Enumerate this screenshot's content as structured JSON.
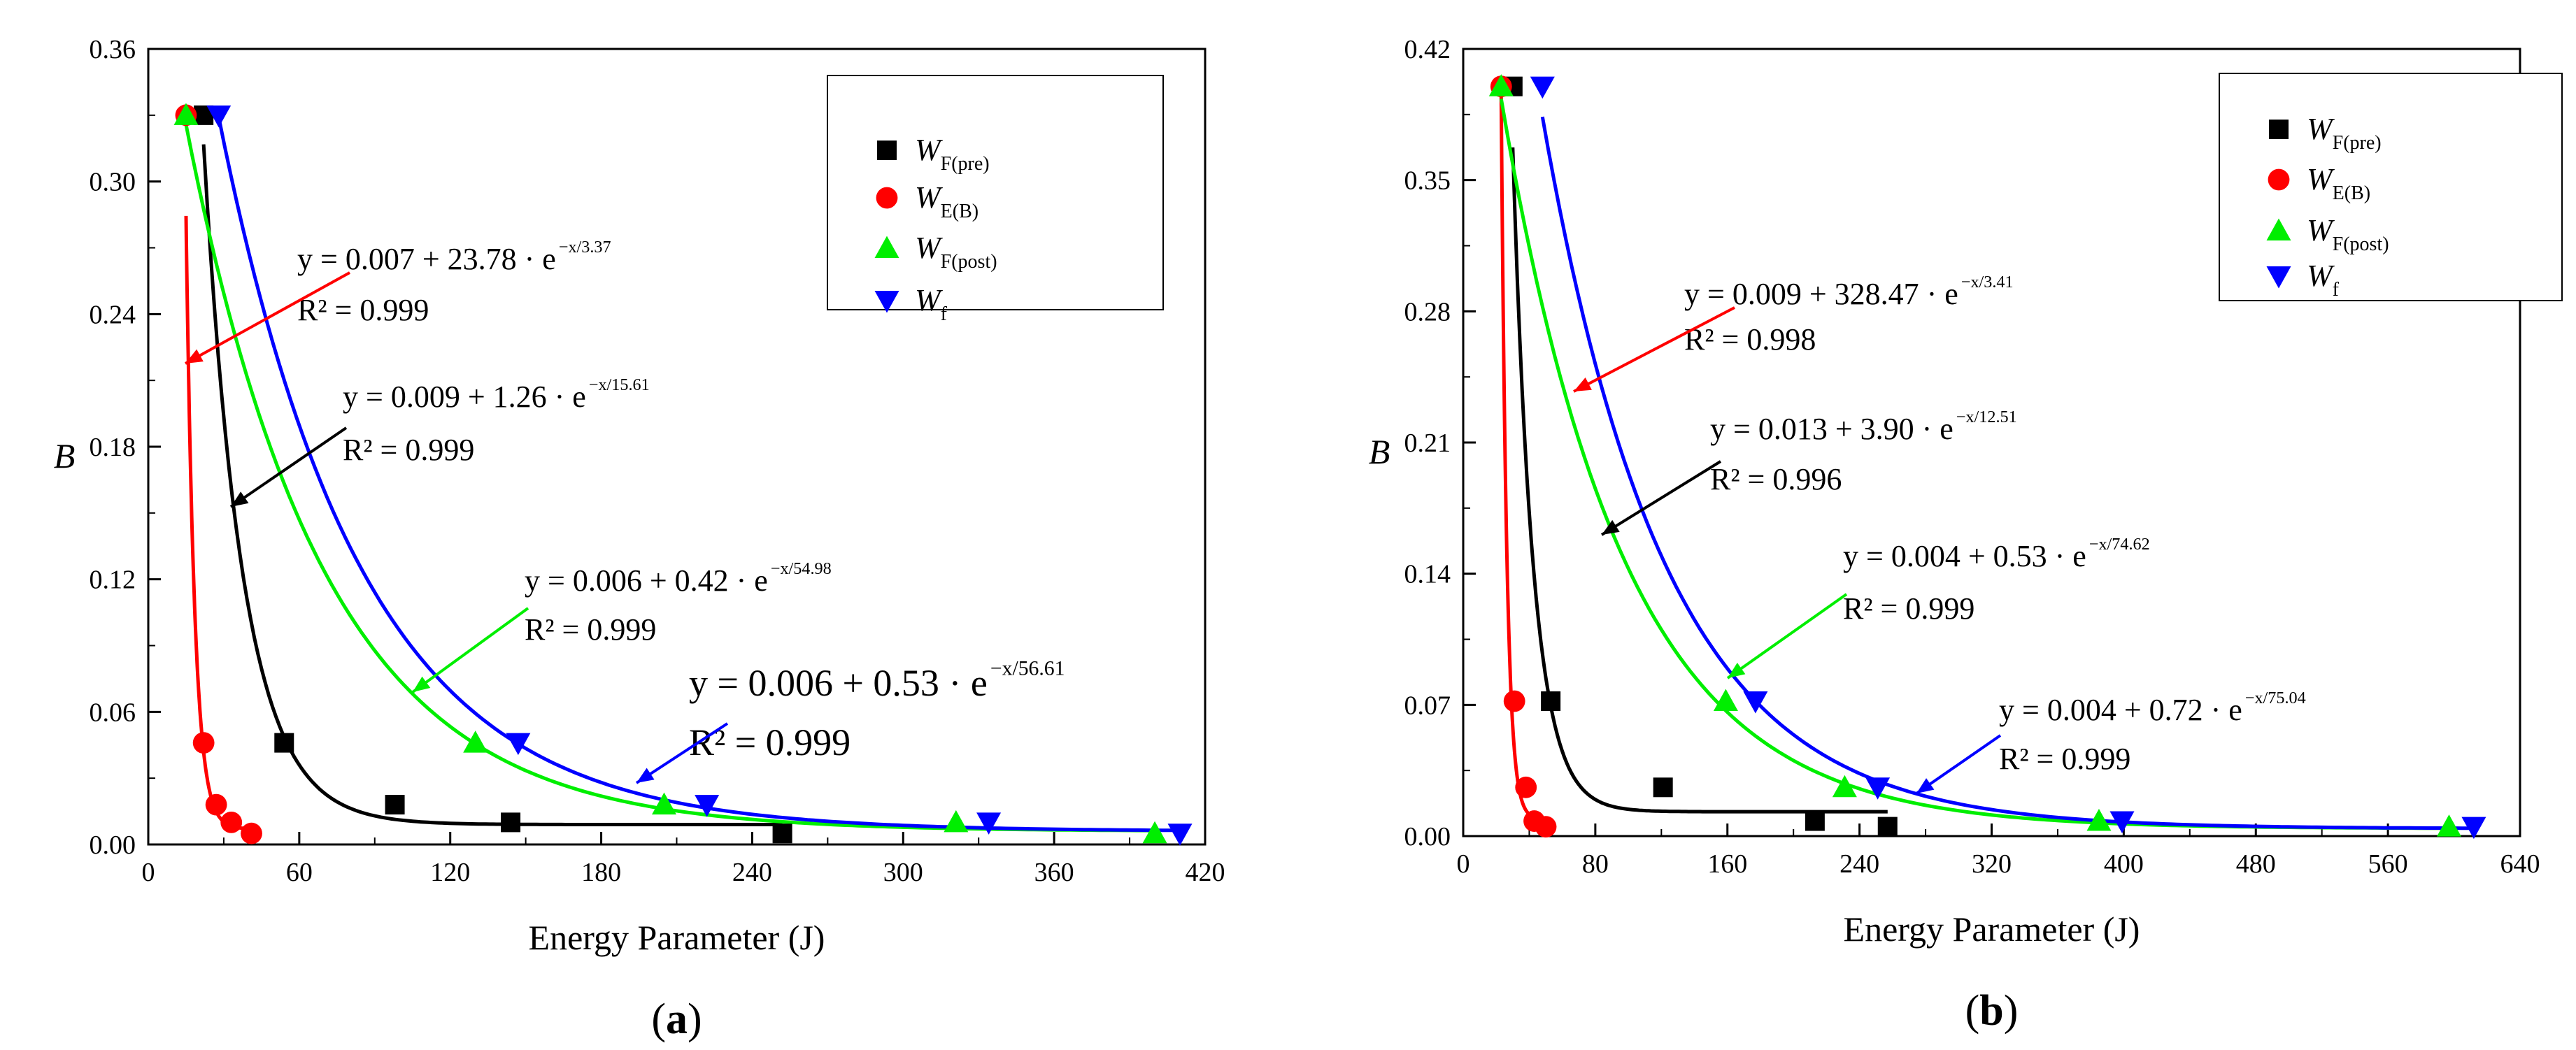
{
  "colors": {
    "pre": "#000000",
    "eb": "#ff0000",
    "post": "#00ee00",
    "f": "#0000ff"
  },
  "chart_data": [
    {
      "type": "scatter",
      "panel_label": "(a)",
      "xlabel": "Energy Parameter (J)",
      "ylabel": "B",
      "xlim": [
        0,
        420
      ],
      "ylim": [
        0,
        0.36
      ],
      "x_ticks": [
        "0",
        "60",
        "120",
        "180",
        "240",
        "300",
        "360",
        "420"
      ],
      "y_ticks": [
        "0.00",
        "0.06",
        "0.12",
        "0.18",
        "0.24",
        "0.30",
        "0.36"
      ],
      "grid": false,
      "legend_position": "top-right",
      "series": [
        {
          "key": "pre",
          "name": "W",
          "sub": "F(pre)",
          "marker": "square",
          "x": [
            22,
            54,
            98,
            144,
            252
          ],
          "y": [
            0.33,
            0.046,
            0.018,
            0.01,
            0.005
          ],
          "fit": {
            "a": 0.009,
            "b": 1.26,
            "c": 15.61,
            "x_start": 22,
            "x_end": 252,
            "eq_y": "y = 0.009 + 1.26 · e",
            "eq_exp": "−x/15.61",
            "eq_r2": "R² = 0.999"
          }
        },
        {
          "key": "eb",
          "name": "W",
          "sub": "E(B)",
          "marker": "circle",
          "x": [
            15,
            22,
            27,
            33,
            41
          ],
          "y": [
            0.33,
            0.046,
            0.018,
            0.01,
            0.005
          ],
          "fit": {
            "a": 0.007,
            "b": 23.78,
            "c": 3.37,
            "x_start": 15,
            "x_end": 41,
            "eq_y": "y = 0.007 + 23.78 · e",
            "eq_exp": "−x/3.37",
            "eq_r2": "R² = 0.999"
          }
        },
        {
          "key": "post",
          "name": "W",
          "sub": "F(post)",
          "marker": "triangle-up",
          "x": [
            15,
            130,
            205,
            321,
            400
          ],
          "y": [
            0.33,
            0.046,
            0.018,
            0.01,
            0.005
          ],
          "fit": {
            "a": 0.006,
            "b": 0.42,
            "c": 54.98,
            "x_start": 15,
            "x_end": 400,
            "eq_y": "y = 0.006 + 0.42 · e",
            "eq_exp": "−x/54.98",
            "eq_r2": "R² = 0.999"
          }
        },
        {
          "key": "f",
          "name": "W",
          "sub": "f",
          "marker": "triangle-down",
          "x": [
            28,
            147,
            222,
            334,
            410
          ],
          "y": [
            0.33,
            0.046,
            0.018,
            0.01,
            0.005
          ],
          "fit": {
            "a": 0.006,
            "b": 0.53,
            "c": 56.61,
            "x_start": 28,
            "x_end": 410,
            "eq_y": "y = 0.006 + 0.53 · e",
            "eq_exp": "−x/56.61",
            "eq_r2": "R² = 0.999"
          }
        }
      ]
    },
    {
      "type": "scatter",
      "panel_label": "(b)",
      "xlabel": "Energy Parameter (J)",
      "ylabel": "B",
      "xlim": [
        0,
        640
      ],
      "ylim": [
        0,
        0.42
      ],
      "x_ticks": [
        "0",
        "80",
        "160",
        "240",
        "320",
        "400",
        "480",
        "560",
        "640"
      ],
      "y_ticks": [
        "0.00",
        "0.07",
        "0.14",
        "0.21",
        "0.28",
        "0.35",
        "0.42"
      ],
      "grid": false,
      "legend_position": "top-right",
      "series": [
        {
          "key": "pre",
          "name": "W",
          "sub": "F(pre)",
          "marker": "square",
          "x": [
            30,
            53,
            121,
            213,
            257
          ],
          "y": [
            0.4,
            0.072,
            0.026,
            0.008,
            0.005
          ],
          "fit": {
            "a": 0.013,
            "b": 3.9,
            "c": 12.51,
            "x_start": 30,
            "x_end": 257,
            "eq_y": "y = 0.013 + 3.90 · e",
            "eq_exp": "−x/12.51",
            "eq_r2": "R² = 0.996"
          }
        },
        {
          "key": "eb",
          "name": "W",
          "sub": "E(B)",
          "marker": "circle",
          "x": [
            23,
            31,
            38,
            43,
            50
          ],
          "y": [
            0.4,
            0.072,
            0.026,
            0.008,
            0.005
          ],
          "fit": {
            "a": 0.009,
            "b": 328.47,
            "c": 3.41,
            "x_start": 23,
            "x_end": 50,
            "eq_y": "y = 0.009 + 328.47 · e",
            "eq_exp": "−x/3.41",
            "eq_r2": "R² = 0.998"
          }
        },
        {
          "key": "post",
          "name": "W",
          "sub": "F(post)",
          "marker": "triangle-up",
          "x": [
            23,
            159,
            231,
            385,
            597
          ],
          "y": [
            0.4,
            0.072,
            0.026,
            0.008,
            0.005
          ],
          "fit": {
            "a": 0.004,
            "b": 0.53,
            "c": 74.62,
            "x_start": 23,
            "x_end": 597,
            "eq_y": "y = 0.004 + 0.53 · e",
            "eq_exp": "−x/74.62",
            "eq_r2": "R² = 0.999"
          }
        },
        {
          "key": "f",
          "name": "W",
          "sub": "f",
          "marker": "triangle-down",
          "x": [
            48,
            177,
            251,
            399,
            612
          ],
          "y": [
            0.4,
            0.072,
            0.026,
            0.008,
            0.005
          ],
          "fit": {
            "a": 0.004,
            "b": 0.72,
            "c": 75.04,
            "x_start": 48,
            "x_end": 612,
            "eq_y": "y = 0.004 + 0.72 · e",
            "eq_exp": "−x/75.04",
            "eq_r2": "R² = 0.999"
          }
        }
      ]
    }
  ]
}
